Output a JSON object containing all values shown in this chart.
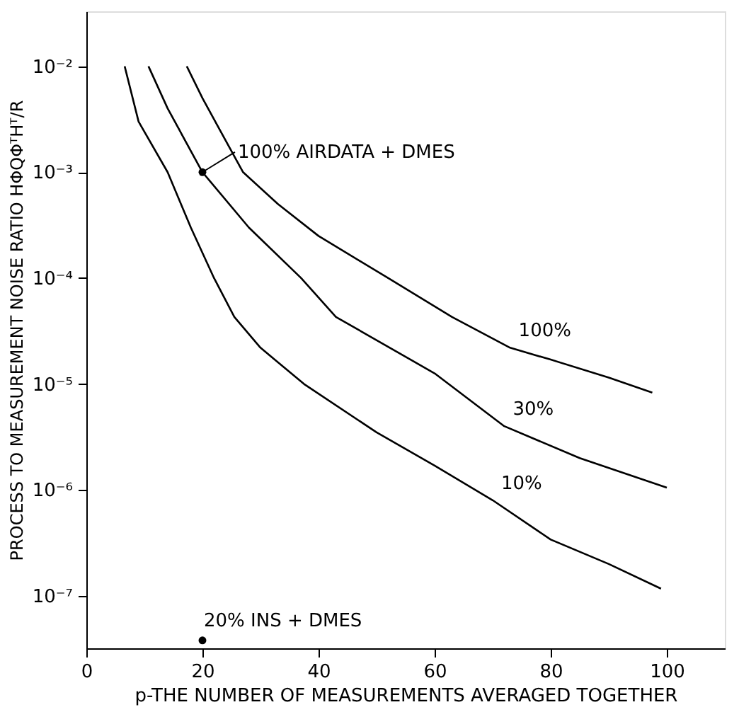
{
  "chart_data": {
    "type": "line",
    "log": "y",
    "xlabel": "p-THE NUMBER OF MEASUREMENTS AVERAGED TOGETHER",
    "ylabel": "PROCESS TO MEASUREMENT NOISE RATIO HΦQΦᵀHᵀ/R",
    "xlim": [
      0,
      110
    ],
    "xticks": [
      0,
      20,
      40,
      60,
      80,
      100
    ],
    "ylim": [
      3.2e-08,
      0.033
    ],
    "yticks": [
      {
        "value": 1e-07,
        "label": "10⁻⁷"
      },
      {
        "value": 1e-06,
        "label": "10⁻⁶"
      },
      {
        "value": 1e-05,
        "label": "10⁻⁵"
      },
      {
        "value": 0.0001,
        "label": "10⁻⁴"
      },
      {
        "value": 0.001,
        "label": "10⁻³"
      },
      {
        "value": 0.01,
        "label": "10⁻²"
      }
    ],
    "grid": false,
    "marker": "none",
    "line_style": "solid",
    "series": [
      {
        "name": "100%",
        "color": "#000000",
        "x": [
          17.3,
          20,
          23,
          27,
          33,
          40,
          52,
          63,
          73,
          80,
          90,
          97.5
        ],
        "values": [
          0.01,
          0.005,
          0.0025,
          0.001,
          0.0005,
          0.00025,
          0.0001,
          4.3e-05,
          2.2e-05,
          1.7e-05,
          1.15e-05,
          8.3e-06
        ]
      },
      {
        "name": "30%",
        "color": "#000000",
        "x": [
          10.7,
          14,
          20,
          28,
          37,
          43,
          60,
          72,
          85,
          100
        ],
        "values": [
          0.01,
          0.004,
          0.001,
          0.0003,
          0.0001,
          4.3e-05,
          1.26e-05,
          4e-06,
          2e-06,
          1.05e-06
        ]
      },
      {
        "name": "10%",
        "color": "#000000",
        "x": [
          6.6,
          9,
          14,
          18,
          22,
          25.5,
          30,
          37.5,
          50,
          60,
          70,
          80,
          90,
          99
        ],
        "values": [
          0.01,
          0.003,
          0.001,
          0.0003,
          0.0001,
          4.3e-05,
          2.2e-05,
          1e-05,
          3.5e-06,
          1.7e-06,
          8e-07,
          3.4e-07,
          2e-07,
          1.17e-07
        ]
      },
      {
        "type": "scatter",
        "marker": "circle",
        "color": "#000000",
        "x": [
          20,
          20
        ],
        "values": [
          0.001,
          3.8e-08
        ]
      }
    ],
    "annotations": [
      {
        "text": "100% AIRDATA + DMES",
        "x": 20,
        "y": 0.001
      },
      {
        "text": "20% INS + DMES",
        "x": 20,
        "y": 3.8e-08
      }
    ]
  }
}
